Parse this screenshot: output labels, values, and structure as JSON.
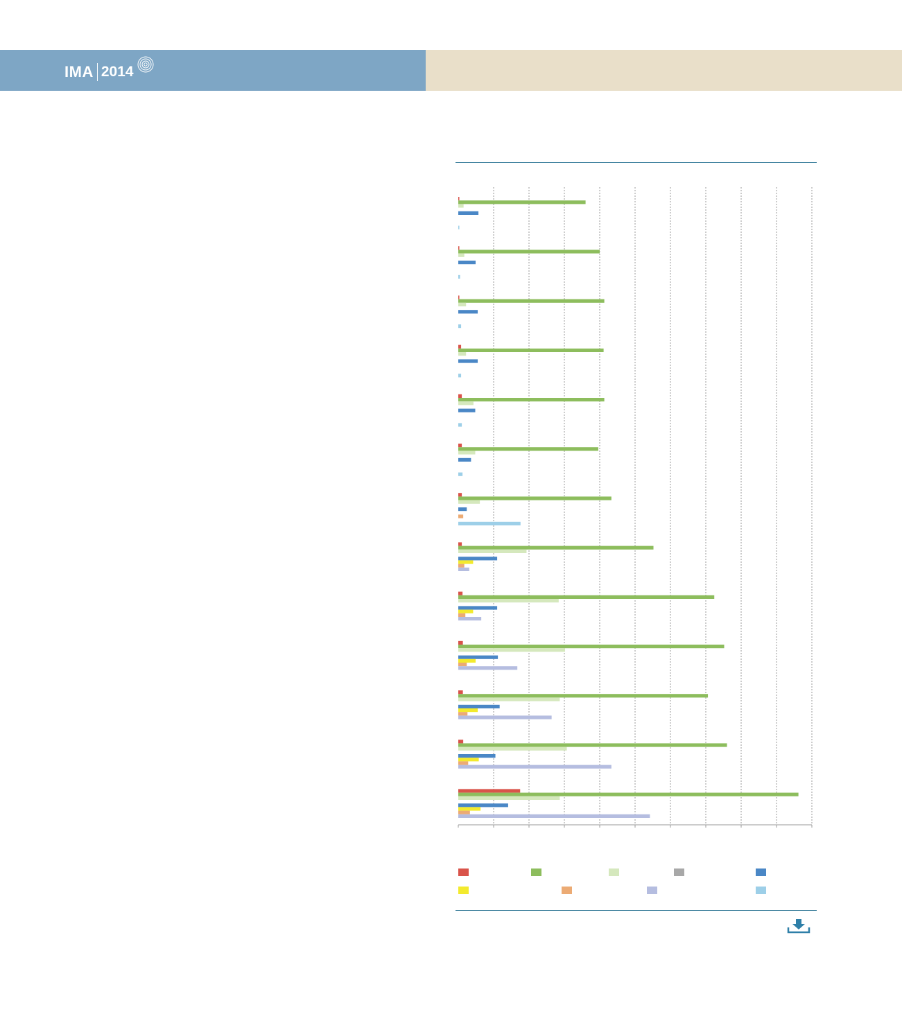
{
  "header": {
    "logo_text": "IMA",
    "logo_year": "2014",
    "left_color": "#7ea6c5",
    "right_color": "#e9dfc9"
  },
  "icons": {
    "logo_rings": "concentric-circles-icon",
    "download": "download-icon"
  },
  "chart_data": {
    "type": "bar",
    "orientation": "horizontal",
    "title": "",
    "xlabel": "",
    "ylabel": "",
    "grid": true,
    "legend_placement": "bottom",
    "categories": [
      "",
      "",
      "",
      "",
      "",
      "",
      "",
      "",
      "",
      "",
      "",
      "",
      ""
    ],
    "xlim": [
      0,
      10
    ],
    "series": [
      {
        "color": "#d9534a",
        "values": [
          0.02,
          0.02,
          0.03,
          0.08,
          0.1,
          0.1,
          0.1,
          0.1,
          0.12,
          0.13,
          0.13,
          0.14,
          1.75
        ]
      },
      {
        "color": "#8dbd5d",
        "values": [
          3.6,
          4.0,
          4.13,
          4.11,
          4.13,
          3.96,
          4.33,
          5.52,
          7.24,
          7.52,
          7.06,
          7.6,
          9.62
        ]
      },
      {
        "color": "#d5e8bd",
        "values": [
          0.15,
          0.17,
          0.22,
          0.22,
          0.43,
          0.48,
          0.61,
          1.93,
          2.84,
          3.02,
          2.87,
          3.07,
          2.87
        ]
      },
      {
        "color": "#a8a8a8",
        "values": [
          0,
          0,
          0,
          0,
          0,
          0,
          0,
          0,
          0,
          0,
          0,
          0,
          0
        ]
      },
      {
        "color": "#4a87c6",
        "values": [
          0.57,
          0.49,
          0.55,
          0.55,
          0.48,
          0.36,
          0.24,
          1.1,
          1.1,
          1.12,
          1.17,
          1.05,
          1.41
        ]
      },
      {
        "color": "#f3ea2d",
        "values": [
          0,
          0,
          0,
          0,
          0,
          0,
          0,
          0.42,
          0.42,
          0.49,
          0.55,
          0.58,
          0.63
        ]
      },
      {
        "color": "#ecab74",
        "values": [
          0,
          0,
          0,
          0,
          0,
          0,
          0.14,
          0.17,
          0.2,
          0.24,
          0.26,
          0.28,
          0.33
        ]
      },
      {
        "color": "#b5bde0",
        "values": [
          0,
          0,
          0,
          0,
          0,
          0,
          0,
          0.31,
          0.65,
          1.67,
          2.64,
          4.33,
          5.42
        ]
      },
      {
        "color": "#9dcfe8",
        "values": [
          0.03,
          0.05,
          0.08,
          0.08,
          0.1,
          0.12,
          1.76,
          0,
          0,
          0,
          0,
          0,
          0
        ]
      }
    ]
  }
}
